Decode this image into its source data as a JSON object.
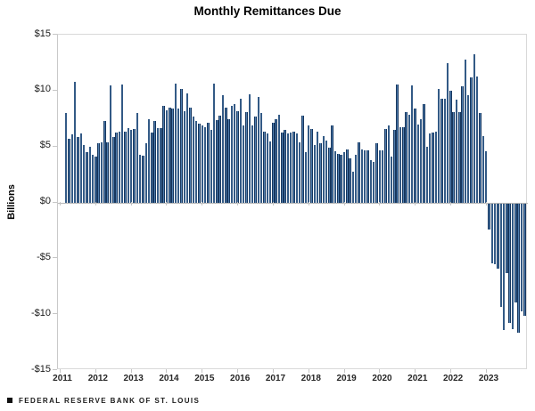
{
  "title": "Monthly Remittances Due",
  "footer": {
    "marker_icon": "square-bullet-icon",
    "source_label": "FEDERAL RESERVE BANK OF ST. LOUIS"
  },
  "y_axis": {
    "label": "Billions",
    "ticks": [
      {
        "label": "$15",
        "value": 15
      },
      {
        "label": "$10",
        "value": 10
      },
      {
        "label": "$5",
        "value": 5
      },
      {
        "label": "$0",
        "value": 0
      },
      {
        "label": "-$5",
        "value": -5
      },
      {
        "label": "-$10",
        "value": -10
      },
      {
        "label": "-$15",
        "value": -15
      }
    ]
  },
  "x_axis": {
    "ticks": [
      "2011",
      "2012",
      "2013",
      "2014",
      "2015",
      "2016",
      "2017",
      "2018",
      "2019",
      "2020",
      "2021",
      "2022",
      "2023"
    ]
  },
  "colors": {
    "bar_edge": "#17365d",
    "bar_core": "#4f7dae",
    "plot_border": "#d9d9d9",
    "zero_line": "#b7b7b7",
    "tick": "#c6c6c6",
    "text": "#000000"
  },
  "chart_data": {
    "type": "bar",
    "title": "Monthly Remittances Due",
    "xlabel": "",
    "ylabel": "Billions",
    "ylim": [
      -15,
      15
    ],
    "grid": false,
    "legend": "none",
    "x_start": "2011-01",
    "x_end": "2023-12",
    "x_frequency": "monthly",
    "categories": [
      "2011",
      "2012",
      "2013",
      "2014",
      "2015",
      "2016",
      "2017",
      "2018",
      "2019",
      "2020",
      "2021",
      "2022",
      "2023"
    ],
    "series": [
      {
        "name": "Monthly remittances due ($ billions)",
        "values": [
          8.0,
          5.7,
          6.1,
          10.8,
          5.9,
          6.2,
          5.2,
          4.5,
          5.0,
          4.3,
          4.1,
          5.3,
          5.4,
          7.3,
          5.4,
          10.5,
          5.9,
          6.3,
          6.4,
          10.6,
          6.4,
          6.7,
          6.5,
          6.6,
          8.0,
          4.3,
          4.2,
          5.3,
          7.5,
          6.3,
          7.3,
          6.7,
          6.7,
          8.7,
          8.3,
          8.5,
          8.4,
          10.7,
          8.4,
          10.2,
          8.2,
          9.8,
          8.5,
          7.7,
          7.3,
          7.1,
          6.9,
          6.8,
          7.2,
          6.5,
          10.7,
          7.4,
          7.8,
          9.6,
          8.5,
          7.5,
          8.7,
          8.8,
          8.2,
          9.3,
          6.9,
          8.1,
          9.7,
          6.9,
          7.7,
          9.5,
          8.0,
          6.4,
          6.2,
          5.5,
          7.2,
          7.5,
          7.9,
          6.3,
          6.5,
          6.2,
          6.3,
          6.4,
          6.2,
          5.4,
          7.8,
          4.5,
          6.9,
          6.6,
          5.2,
          6.4,
          5.3,
          6.0,
          5.6,
          4.9,
          6.9,
          4.6,
          4.4,
          4.3,
          4.5,
          4.8,
          4.0,
          2.8,
          4.3,
          5.4,
          4.8,
          4.7,
          4.7,
          3.8,
          3.7,
          5.3,
          4.7,
          4.7,
          6.6,
          6.9,
          4.1,
          6.5,
          10.6,
          6.8,
          6.8,
          8.1,
          7.9,
          10.5,
          8.4,
          7.0,
          7.5,
          8.8,
          5.0,
          6.2,
          6.3,
          6.4,
          10.2,
          9.3,
          9.3,
          12.5,
          10.0,
          8.1,
          9.2,
          8.1,
          10.4,
          12.8,
          9.6,
          11.2,
          13.3,
          11.3,
          8.0,
          6.0,
          4.6,
          -2.3,
          -5.3,
          -5.4,
          -5.8,
          -9.2,
          -11.3,
          -6.2,
          -10.7,
          -11.2,
          -8.8,
          -11.5,
          -9.6,
          -10.0
        ]
      }
    ]
  }
}
